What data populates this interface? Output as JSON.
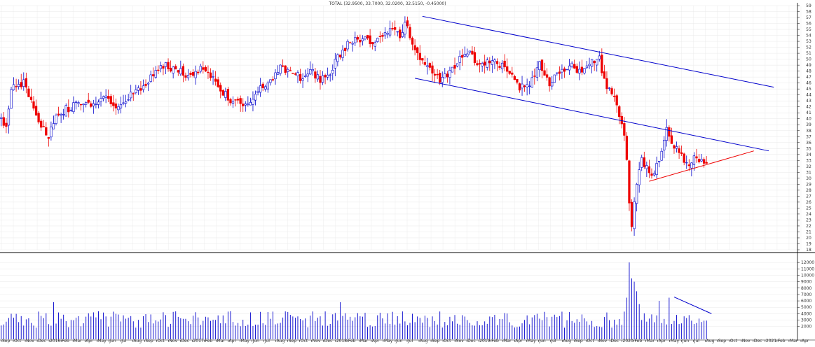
{
  "chart_data": {
    "type": "candlestick",
    "title": "TOTAL (32.9500, 33.7000, 32.0200, 32.5150, -0.45000)",
    "colors": {
      "up": "#0000cc",
      "down": "#ee0000",
      "channel": "#0000cc",
      "support": "#ee0000",
      "volume": "#0000cc",
      "grid": "#e8e8e8",
      "axis": "#000000"
    },
    "price_axis": {
      "min": 18,
      "max": 59,
      "ticks": [
        18,
        19,
        20,
        21,
        22,
        23,
        24,
        25,
        26,
        27,
        28,
        29,
        30,
        31,
        32,
        33,
        34,
        35,
        36,
        37,
        38,
        39,
        40,
        41,
        42,
        43,
        44,
        45,
        46,
        47,
        48,
        49,
        50,
        51,
        52,
        53,
        54,
        55,
        56,
        57,
        58,
        59
      ]
    },
    "volume_axis": {
      "min": 0,
      "max": 13000,
      "ticks": [
        2000,
        3000,
        4000,
        5000,
        6000,
        7000,
        8000,
        9000,
        10000,
        11000,
        12000
      ]
    },
    "x_axis": {
      "labels": [
        "Sep",
        "Oct",
        "Nov",
        "Dec",
        "2016",
        "Feb",
        "Mar",
        "Apr",
        "May",
        "Jun",
        "Jul",
        "Aug",
        "Sep",
        "Oct",
        "Nov",
        "Dec",
        "2017",
        "Feb",
        "Mar",
        "Apr",
        "May",
        "Jun",
        "Jul",
        "Aug",
        "Sep",
        "Oct",
        "Nov",
        "Dec",
        "2018",
        "Feb",
        "Mar",
        "Apr",
        "May",
        "Jun",
        "Jul",
        "Aug",
        "Sep",
        "Oct",
        "Nov",
        "Dec",
        "2019",
        "Feb",
        "Mar",
        "Apr",
        "May",
        "Jun",
        "Jul",
        "Aug",
        "Sep",
        "Oct",
        "Nov",
        "Dec",
        "2020",
        "Feb",
        "Mar",
        "Apr",
        "May",
        "Jun",
        "Jul",
        "Aug",
        "Sep",
        "Oct",
        "Nov",
        "Dec",
        "2021",
        "Feb",
        "Mar",
        "Apr"
      ]
    },
    "anchors": [
      [
        0,
        40
      ],
      [
        2,
        38.5
      ],
      [
        4,
        45
      ],
      [
        9,
        46
      ],
      [
        13,
        42
      ],
      [
        16,
        39
      ],
      [
        19,
        37
      ],
      [
        23,
        41
      ],
      [
        28,
        42
      ],
      [
        33,
        43
      ],
      [
        38,
        42.5
      ],
      [
        42,
        43.5
      ],
      [
        47,
        42
      ],
      [
        52,
        44
      ],
      [
        57,
        45
      ],
      [
        62,
        48
      ],
      [
        65,
        49
      ],
      [
        70,
        48
      ],
      [
        75,
        47.5
      ],
      [
        80,
        48.5
      ],
      [
        84,
        47
      ],
      [
        88,
        45
      ],
      [
        92,
        43
      ],
      [
        96,
        42.5
      ],
      [
        100,
        43
      ],
      [
        104,
        45
      ],
      [
        108,
        46
      ],
      [
        112,
        48.5
      ],
      [
        116,
        48
      ],
      [
        120,
        47
      ],
      [
        124,
        48
      ],
      [
        128,
        46.5
      ],
      [
        132,
        48
      ],
      [
        136,
        51
      ],
      [
        140,
        53
      ],
      [
        144,
        53.5
      ],
      [
        148,
        53
      ],
      [
        152,
        53.5
      ],
      [
        156,
        55.5
      ],
      [
        160,
        54
      ],
      [
        162,
        56
      ],
      [
        165,
        53
      ],
      [
        168,
        50
      ],
      [
        172,
        48
      ],
      [
        176,
        46.5
      ],
      [
        180,
        48
      ],
      [
        184,
        50
      ],
      [
        188,
        51
      ],
      [
        192,
        49
      ],
      [
        196,
        49.5
      ],
      [
        200,
        49
      ],
      [
        204,
        48
      ],
      [
        208,
        45
      ],
      [
        212,
        46
      ],
      [
        216,
        49
      ],
      [
        220,
        45.5
      ],
      [
        224,
        48
      ],
      [
        228,
        49
      ],
      [
        232,
        48
      ],
      [
        236,
        49.5
      ],
      [
        240,
        50
      ],
      [
        243,
        45
      ],
      [
        246,
        44
      ],
      [
        248,
        40
      ],
      [
        250,
        37
      ],
      [
        251,
        33
      ],
      [
        252,
        26
      ],
      [
        253,
        22
      ],
      [
        255,
        29
      ],
      [
        257,
        33
      ],
      [
        259,
        32
      ],
      [
        261,
        30
      ],
      [
        263,
        32
      ],
      [
        265,
        34
      ],
      [
        267,
        38
      ],
      [
        269,
        36
      ],
      [
        271,
        35
      ],
      [
        273,
        34
      ],
      [
        275,
        32
      ],
      [
        277,
        33
      ],
      [
        279,
        33.5
      ],
      [
        281,
        33
      ],
      [
        283,
        32.5
      ]
    ],
    "last_close": 32.515,
    "trendlines": [
      {
        "from": [
          169,
          57.2
        ],
        "to": [
          310,
          45.3
        ],
        "color": "channel"
      },
      {
        "from": [
          166,
          46.8
        ],
        "to": [
          308,
          34.6
        ],
        "color": "channel"
      },
      {
        "from": [
          260,
          29.5
        ],
        "to": [
          302,
          34.6
        ],
        "color": "support"
      }
    ],
    "volume_trendline": {
      "from": [
        270,
        6600
      ],
      "to": [
        285,
        4000
      ]
    },
    "volume_spikes": [
      [
        252,
        12000
      ],
      [
        253,
        9500
      ],
      [
        254,
        9000
      ],
      [
        255,
        7500
      ],
      [
        256,
        5500
      ],
      [
        251,
        6500
      ],
      [
        264,
        6000
      ],
      [
        268,
        6500
      ],
      [
        136,
        5800
      ],
      [
        21,
        5800
      ]
    ]
  }
}
